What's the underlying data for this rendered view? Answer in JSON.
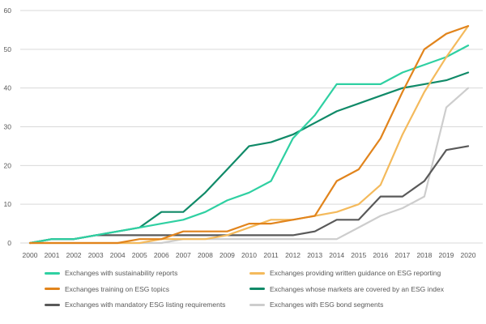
{
  "chart_data": {
    "type": "line",
    "title": "",
    "xlabel": "",
    "ylabel": "",
    "x": [
      2000,
      2001,
      2002,
      2003,
      2004,
      2005,
      2006,
      2007,
      2008,
      2009,
      2010,
      2011,
      2012,
      2013,
      2014,
      2015,
      2016,
      2017,
      2018,
      2019,
      2020
    ],
    "ylim": [
      0,
      60
    ],
    "yticks": [
      0,
      10,
      20,
      30,
      40,
      50,
      60
    ],
    "grid": true,
    "legend_position": "bottom",
    "series": [
      {
        "name": "Exchanges with sustainability reports",
        "color": "#2fd0a2",
        "values": [
          0,
          1,
          1,
          2,
          3,
          4,
          5,
          6,
          8,
          11,
          13,
          16,
          27,
          33,
          41,
          41,
          41,
          44,
          46,
          48,
          51
        ]
      },
      {
        "name": "Exchanges providing written guidance on ESG reporting",
        "color": "#f4ba5c",
        "values": [
          0,
          0,
          0,
          0,
          0,
          0,
          1,
          1,
          1,
          2,
          4,
          6,
          6,
          7,
          8,
          10,
          15,
          28,
          39,
          48,
          56
        ]
      },
      {
        "name": "Exchanges training on ESG topics",
        "color": "#e1841c",
        "values": [
          0,
          0,
          0,
          0,
          0,
          1,
          1,
          3,
          3,
          3,
          5,
          5,
          6,
          7,
          16,
          19,
          27,
          39,
          50,
          54,
          56
        ]
      },
      {
        "name": "Exchanges whose markets are covered by an ESG index",
        "color": "#108a68",
        "values": [
          0,
          1,
          1,
          2,
          3,
          4,
          8,
          8,
          13,
          19,
          25,
          26,
          28,
          31,
          34,
          36,
          38,
          40,
          41,
          42,
          44
        ]
      },
      {
        "name": "Exchanges with mandatory ESG listing requirements",
        "color": "#595959",
        "values": [
          0,
          1,
          1,
          2,
          2,
          2,
          2,
          2,
          2,
          2,
          2,
          2,
          2,
          3,
          6,
          6,
          12,
          12,
          16,
          24,
          25
        ]
      },
      {
        "name": "Exchanges with ESG bond segments",
        "color": "#cdcdcd",
        "values": [
          0,
          0,
          0,
          0,
          0,
          0,
          0,
          1,
          1,
          1,
          1,
          1,
          1,
          1,
          1,
          4,
          7,
          9,
          12,
          35,
          40
        ]
      }
    ]
  },
  "axis": {
    "text_color": "#595959",
    "grid_color": "#d9d9d9"
  }
}
